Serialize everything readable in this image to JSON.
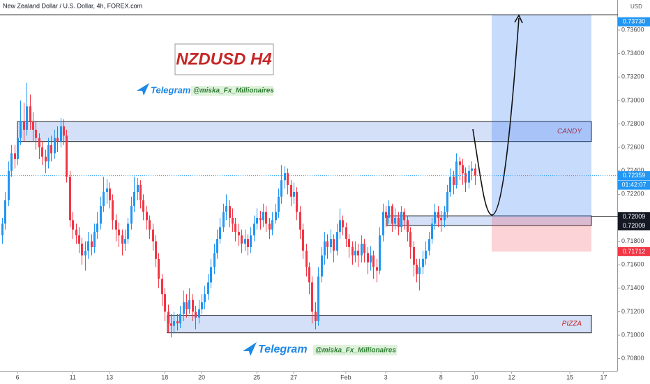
{
  "chart_data": {
    "type": "candlestick",
    "title": "New Zealand Dollar / U.S. Dollar, 4h, FOREX.com",
    "currency": "USD",
    "up_color": "#2196f3",
    "down_color": "#f23645",
    "xlim": [
      -0.7,
      199.3
    ],
    "xticks": [
      {
        "value": 5,
        "label": "6"
      },
      {
        "value": 23,
        "label": "11"
      },
      {
        "value": 35,
        "label": "13"
      },
      {
        "value": 53,
        "label": "18"
      },
      {
        "value": 65,
        "label": "20"
      },
      {
        "value": 83,
        "label": "25"
      },
      {
        "value": 95,
        "label": "27"
      },
      {
        "value": 112,
        "label": "Feb"
      },
      {
        "value": 125,
        "label": "3"
      },
      {
        "value": 143,
        "label": "8"
      },
      {
        "value": 154,
        "label": "10"
      },
      {
        "value": 166,
        "label": "12"
      },
      {
        "value": 185,
        "label": "15"
      },
      {
        "value": 196,
        "label": "17"
      }
    ],
    "ylim": [
      0.70691,
      0.73856
    ],
    "yticks": [
      {
        "value": 0.708,
        "label": "0.70800"
      },
      {
        "value": 0.71,
        "label": "0.71000"
      },
      {
        "value": 0.712,
        "label": "0.71200"
      },
      {
        "value": 0.714,
        "label": "0.71400"
      },
      {
        "value": 0.716,
        "label": "0.71600"
      },
      {
        "value": 0.718,
        "label": "0.71800"
      },
      {
        "value": 0.72,
        "label": "0.72000"
      },
      {
        "value": 0.722,
        "label": "0.72200"
      },
      {
        "value": 0.724,
        "label": "0.72400"
      },
      {
        "value": 0.726,
        "label": "0.72600"
      },
      {
        "value": 0.728,
        "label": "0.72800"
      },
      {
        "value": 0.73,
        "label": "0.73000"
      },
      {
        "value": 0.732,
        "label": "0.73200"
      },
      {
        "value": 0.734,
        "label": "0.73400"
      },
      {
        "value": 0.736,
        "label": "0.73600"
      }
    ],
    "ohlc": [
      [
        0.7185,
        0.72,
        0.7178,
        0.7195
      ],
      [
        0.7195,
        0.7222,
        0.719,
        0.7215
      ],
      [
        0.7215,
        0.7248,
        0.721,
        0.724
      ],
      [
        0.724,
        0.7262,
        0.7235,
        0.7255
      ],
      [
        0.7255,
        0.7262,
        0.7242,
        0.725
      ],
      [
        0.725,
        0.7275,
        0.7245,
        0.7268
      ],
      [
        0.7268,
        0.73,
        0.7262,
        0.7282
      ],
      [
        0.7282,
        0.7298,
        0.7265,
        0.7275
      ],
      [
        0.7275,
        0.7315,
        0.727,
        0.7295
      ],
      [
        0.7295,
        0.7305,
        0.7275,
        0.7282
      ],
      [
        0.7282,
        0.729,
        0.7265,
        0.7275
      ],
      [
        0.7275,
        0.7282,
        0.7258,
        0.7268
      ],
      [
        0.7268,
        0.7272,
        0.725,
        0.726
      ],
      [
        0.726,
        0.7265,
        0.7245,
        0.7252
      ],
      [
        0.7252,
        0.7258,
        0.7238,
        0.7248
      ],
      [
        0.7248,
        0.7268,
        0.7242,
        0.7262
      ],
      [
        0.7262,
        0.727,
        0.7248,
        0.7255
      ],
      [
        0.7255,
        0.7275,
        0.725,
        0.7268
      ],
      [
        0.7268,
        0.7278,
        0.7256,
        0.7265
      ],
      [
        0.7265,
        0.7285,
        0.726,
        0.7278
      ],
      [
        0.7278,
        0.7284,
        0.7262,
        0.727
      ],
      [
        0.727,
        0.7275,
        0.723,
        0.7235
      ],
      [
        0.7235,
        0.724,
        0.7192,
        0.7198
      ],
      [
        0.7198,
        0.7205,
        0.7182,
        0.719
      ],
      [
        0.719,
        0.7195,
        0.7178,
        0.7185
      ],
      [
        0.7185,
        0.7192,
        0.717,
        0.7178
      ],
      [
        0.7178,
        0.7183,
        0.716,
        0.7168
      ],
      [
        0.7168,
        0.718,
        0.7155,
        0.7172
      ],
      [
        0.7172,
        0.7188,
        0.7165,
        0.718
      ],
      [
        0.718,
        0.7186,
        0.7168,
        0.7175
      ],
      [
        0.7175,
        0.7195,
        0.717,
        0.7188
      ],
      [
        0.7188,
        0.7205,
        0.7182,
        0.7195
      ],
      [
        0.7195,
        0.7218,
        0.719,
        0.721
      ],
      [
        0.721,
        0.7235,
        0.7205,
        0.7222
      ],
      [
        0.7222,
        0.7233,
        0.7212,
        0.7225
      ],
      [
        0.7225,
        0.723,
        0.7208,
        0.7215
      ],
      [
        0.7215,
        0.722,
        0.719,
        0.7198
      ],
      [
        0.7198,
        0.7203,
        0.718,
        0.719
      ],
      [
        0.719,
        0.7196,
        0.7175,
        0.7185
      ],
      [
        0.7185,
        0.719,
        0.7168,
        0.7178
      ],
      [
        0.7178,
        0.719,
        0.7172,
        0.7182
      ],
      [
        0.7182,
        0.72,
        0.7178,
        0.7195
      ],
      [
        0.7195,
        0.7218,
        0.719,
        0.721
      ],
      [
        0.721,
        0.7235,
        0.7205,
        0.7222
      ],
      [
        0.7222,
        0.7234,
        0.7215,
        0.7228
      ],
      [
        0.7228,
        0.7232,
        0.7208,
        0.7215
      ],
      [
        0.7215,
        0.722,
        0.7198,
        0.7205
      ],
      [
        0.7205,
        0.721,
        0.719,
        0.7198
      ],
      [
        0.7198,
        0.7202,
        0.7182,
        0.719
      ],
      [
        0.719,
        0.7195,
        0.7172,
        0.718
      ],
      [
        0.718,
        0.7185,
        0.7158,
        0.7165
      ],
      [
        0.7165,
        0.717,
        0.714,
        0.7148
      ],
      [
        0.7148,
        0.7152,
        0.7125,
        0.7135
      ],
      [
        0.7135,
        0.714,
        0.7112,
        0.712
      ],
      [
        0.712,
        0.7126,
        0.7102,
        0.711
      ],
      [
        0.711,
        0.7118,
        0.7098,
        0.7108
      ],
      [
        0.7108,
        0.712,
        0.7102,
        0.7112
      ],
      [
        0.7112,
        0.7118,
        0.7104,
        0.711
      ],
      [
        0.711,
        0.7125,
        0.7106,
        0.7118
      ],
      [
        0.7118,
        0.7138,
        0.7112,
        0.7128
      ],
      [
        0.7128,
        0.7135,
        0.7115,
        0.7122
      ],
      [
        0.7122,
        0.714,
        0.7118,
        0.713
      ],
      [
        0.713,
        0.7135,
        0.7112,
        0.712
      ],
      [
        0.712,
        0.7125,
        0.7105,
        0.7115
      ],
      [
        0.7115,
        0.713,
        0.711,
        0.7122
      ],
      [
        0.7122,
        0.7135,
        0.7118,
        0.7128
      ],
      [
        0.7128,
        0.7142,
        0.7122,
        0.7135
      ],
      [
        0.7135,
        0.7152,
        0.713,
        0.7145
      ],
      [
        0.7145,
        0.7165,
        0.714,
        0.7158
      ],
      [
        0.7158,
        0.7178,
        0.7152,
        0.717
      ],
      [
        0.717,
        0.719,
        0.7165,
        0.7182
      ],
      [
        0.7182,
        0.72,
        0.7178,
        0.7192
      ],
      [
        0.7192,
        0.7212,
        0.7188,
        0.7205
      ],
      [
        0.7205,
        0.722,
        0.7198,
        0.721
      ],
      [
        0.721,
        0.7215,
        0.7192,
        0.72
      ],
      [
        0.72,
        0.7208,
        0.7188,
        0.7195
      ],
      [
        0.7195,
        0.72,
        0.718,
        0.7188
      ],
      [
        0.7188,
        0.7195,
        0.7176,
        0.7185
      ],
      [
        0.7185,
        0.719,
        0.717,
        0.7178
      ],
      [
        0.7178,
        0.719,
        0.7172,
        0.7182
      ],
      [
        0.7182,
        0.7186,
        0.7168,
        0.7175
      ],
      [
        0.7175,
        0.7192,
        0.717,
        0.7185
      ],
      [
        0.7185,
        0.7202,
        0.718,
        0.7195
      ],
      [
        0.7195,
        0.7208,
        0.719,
        0.72
      ],
      [
        0.72,
        0.7206,
        0.719,
        0.7198
      ],
      [
        0.7198,
        0.7212,
        0.7192,
        0.7205
      ],
      [
        0.7205,
        0.721,
        0.7188,
        0.7195
      ],
      [
        0.7195,
        0.72,
        0.7182,
        0.719
      ],
      [
        0.719,
        0.7205,
        0.7185,
        0.7198
      ],
      [
        0.7198,
        0.7212,
        0.7195,
        0.7205
      ],
      [
        0.7205,
        0.7225,
        0.72,
        0.7218
      ],
      [
        0.7218,
        0.7245,
        0.7212,
        0.7232
      ],
      [
        0.7232,
        0.7244,
        0.7225,
        0.7238
      ],
      [
        0.7238,
        0.7242,
        0.722,
        0.7228
      ],
      [
        0.7228,
        0.7232,
        0.721,
        0.7218
      ],
      [
        0.7218,
        0.723,
        0.7212,
        0.7222
      ],
      [
        0.7222,
        0.7226,
        0.7198,
        0.7205
      ],
      [
        0.7205,
        0.721,
        0.7182,
        0.719
      ],
      [
        0.719,
        0.7195,
        0.7165,
        0.7172
      ],
      [
        0.7172,
        0.7178,
        0.715,
        0.7158
      ],
      [
        0.7158,
        0.7162,
        0.7135,
        0.7145
      ],
      [
        0.7145,
        0.715,
        0.711,
        0.712
      ],
      [
        0.712,
        0.7128,
        0.7105,
        0.7112
      ],
      [
        0.7112,
        0.7158,
        0.7108,
        0.715
      ],
      [
        0.715,
        0.7175,
        0.7145,
        0.7168
      ],
      [
        0.7168,
        0.7188,
        0.716,
        0.718
      ],
      [
        0.718,
        0.7186,
        0.7165,
        0.7175
      ],
      [
        0.7175,
        0.719,
        0.717,
        0.7182
      ],
      [
        0.7182,
        0.7186,
        0.7162,
        0.7172
      ],
      [
        0.7172,
        0.7195,
        0.7168,
        0.7188
      ],
      [
        0.7188,
        0.7208,
        0.7182,
        0.7198
      ],
      [
        0.7198,
        0.7202,
        0.7185,
        0.7192
      ],
      [
        0.7192,
        0.7196,
        0.7175,
        0.7182
      ],
      [
        0.7182,
        0.7186,
        0.7166,
        0.7175
      ],
      [
        0.7175,
        0.718,
        0.716,
        0.7168
      ],
      [
        0.7168,
        0.718,
        0.7162,
        0.7172
      ],
      [
        0.7172,
        0.7178,
        0.7158,
        0.7168
      ],
      [
        0.7168,
        0.7185,
        0.7162,
        0.7178
      ],
      [
        0.7178,
        0.7182,
        0.7162,
        0.717
      ],
      [
        0.717,
        0.7175,
        0.7152,
        0.7162
      ],
      [
        0.7162,
        0.7176,
        0.7155,
        0.7168
      ],
      [
        0.7168,
        0.7172,
        0.7148,
        0.7158
      ],
      [
        0.7158,
        0.7165,
        0.7145,
        0.7155
      ],
      [
        0.7155,
        0.7192,
        0.7152,
        0.7185
      ],
      [
        0.7185,
        0.7212,
        0.718,
        0.7205
      ],
      [
        0.7205,
        0.721,
        0.7192,
        0.72
      ],
      [
        0.72,
        0.7215,
        0.7195,
        0.721
      ],
      [
        0.721,
        0.7212,
        0.7188,
        0.7195
      ],
      [
        0.7195,
        0.7208,
        0.719,
        0.72
      ],
      [
        0.72,
        0.7205,
        0.7185,
        0.7192
      ],
      [
        0.7192,
        0.721,
        0.7188,
        0.7205
      ],
      [
        0.7205,
        0.7208,
        0.719,
        0.7198
      ],
      [
        0.7198,
        0.7202,
        0.718,
        0.7188
      ],
      [
        0.7188,
        0.7192,
        0.7165,
        0.7175
      ],
      [
        0.7175,
        0.718,
        0.715,
        0.716
      ],
      [
        0.716,
        0.7165,
        0.7145,
        0.7152
      ],
      [
        0.7152,
        0.7165,
        0.7138,
        0.7158
      ],
      [
        0.7158,
        0.7172,
        0.7152,
        0.7165
      ],
      [
        0.7165,
        0.718,
        0.716,
        0.7172
      ],
      [
        0.7172,
        0.7188,
        0.7168,
        0.7182
      ],
      [
        0.7182,
        0.72,
        0.7178,
        0.7195
      ],
      [
        0.7195,
        0.7212,
        0.719,
        0.7205
      ],
      [
        0.7205,
        0.721,
        0.7192,
        0.72
      ],
      [
        0.72,
        0.7206,
        0.7188,
        0.7198
      ],
      [
        0.7198,
        0.721,
        0.7192,
        0.7205
      ],
      [
        0.7205,
        0.7228,
        0.72,
        0.7222
      ],
      [
        0.7222,
        0.7242,
        0.7218,
        0.7235
      ],
      [
        0.7235,
        0.724,
        0.722,
        0.7228
      ],
      [
        0.7228,
        0.7255,
        0.7225,
        0.7248
      ],
      [
        0.7248,
        0.7252,
        0.7232,
        0.7245
      ],
      [
        0.7245,
        0.725,
        0.7228,
        0.7238
      ],
      [
        0.7238,
        0.7243,
        0.7222,
        0.723
      ],
      [
        0.723,
        0.7245,
        0.7225,
        0.724
      ],
      [
        0.724,
        0.7248,
        0.7232,
        0.7242
      ],
      [
        0.7242,
        0.7246,
        0.7228,
        0.72359
      ]
    ],
    "countdown": "01:42:07",
    "zones": [
      {
        "label": "CANDY",
        "low": 0.7265,
        "high": 0.7282
      },
      {
        "label": "PIZZA",
        "low": 0.7102,
        "high": 0.7117
      },
      {
        "low": 0.71934,
        "high": 0.72017
      }
    ],
    "position": {
      "entry": 0.72009,
      "target": {
        "value": 0.7373,
        "label": "0.73730"
      },
      "stop": 0.71712
    },
    "hline": 0.72009,
    "badge": "NZDUSD H4",
    "telegram": [
      {
        "label": "Telegram",
        "handle": "@miska_Fx_Millionaires"
      },
      {
        "label": "Telegram",
        "handle": "@miska_Fx_Millionaires"
      }
    ]
  }
}
